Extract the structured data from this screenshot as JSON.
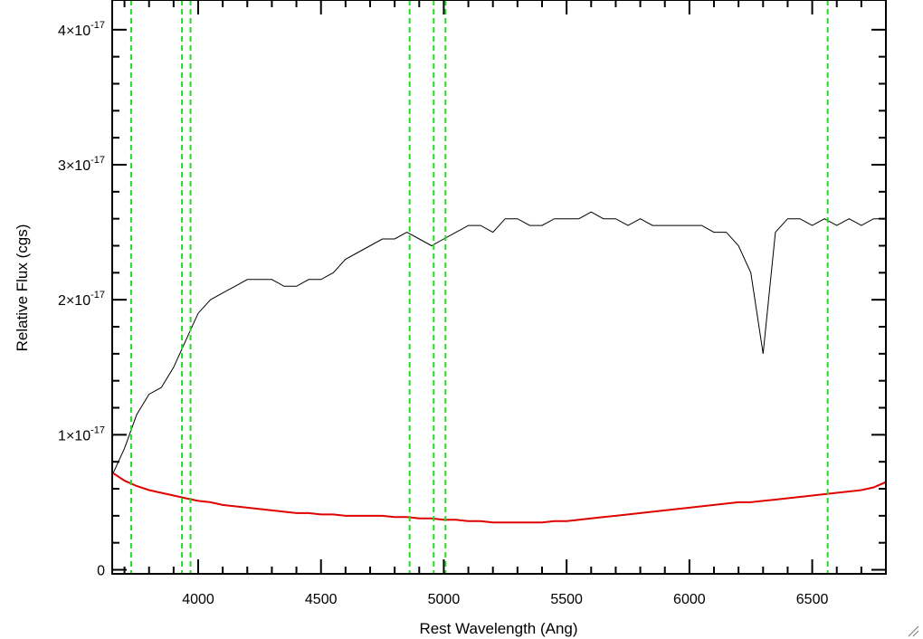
{
  "chart_data": {
    "type": "line",
    "title": "",
    "xlabel": "Rest Wavelength (Ang)",
    "ylabel": "Relative Flux (cgs)",
    "xlim": [
      3650,
      6800
    ],
    "ylim": [
      -0.03,
      4.22
    ],
    "y_scale_note": "x10^-17",
    "x_ticks": [
      {
        "value": 4000,
        "label": "4000"
      },
      {
        "value": 4500,
        "label": "4500"
      },
      {
        "value": 5000,
        "label": "5000"
      },
      {
        "value": 5500,
        "label": "5500"
      },
      {
        "value": 6000,
        "label": "6000"
      },
      {
        "value": 6500,
        "label": "6500"
      }
    ],
    "y_ticks": [
      {
        "value": 0,
        "mantissa": "0",
        "exp": ""
      },
      {
        "value": 1,
        "mantissa": "1×10",
        "exp": "-17"
      },
      {
        "value": 2,
        "mantissa": "2×10",
        "exp": "-17"
      },
      {
        "value": 3,
        "mantissa": "3×10",
        "exp": "-17"
      },
      {
        "value": 4,
        "mantissa": "4×10",
        "exp": "-17"
      }
    ],
    "vertical_lines": [
      3727,
      3934,
      3969,
      4861,
      4959,
      5007,
      6563
    ],
    "series": [
      {
        "color": "#000000",
        "x": [
          3650,
          3700,
          3750,
          3800,
          3850,
          3900,
          3950,
          4000,
          4050,
          4100,
          4150,
          4200,
          4250,
          4300,
          4350,
          4400,
          4450,
          4500,
          4550,
          4600,
          4650,
          4700,
          4750,
          4800,
          4850,
          4900,
          4950,
          5000,
          5050,
          5100,
          5150,
          5200,
          5250,
          5300,
          5350,
          5400,
          5450,
          5500,
          5550,
          5600,
          5650,
          5700,
          5750,
          5800,
          5850,
          5900,
          5950,
          6000,
          6050,
          6100,
          6150,
          6200,
          6250,
          6300,
          6350,
          6400,
          6450,
          6500,
          6550,
          6600,
          6650,
          6700,
          6750,
          6800
        ],
        "y": [
          0.7,
          0.9,
          1.15,
          1.3,
          1.35,
          1.5,
          1.7,
          1.9,
          2.0,
          2.05,
          2.1,
          2.15,
          2.15,
          2.15,
          2.1,
          2.1,
          2.15,
          2.15,
          2.2,
          2.3,
          2.35,
          2.4,
          2.45,
          2.45,
          2.5,
          2.45,
          2.4,
          2.45,
          2.5,
          2.55,
          2.55,
          2.5,
          2.6,
          2.6,
          2.55,
          2.55,
          2.6,
          2.6,
          2.6,
          2.65,
          2.6,
          2.6,
          2.55,
          2.6,
          2.55,
          2.55,
          2.55,
          2.55,
          2.55,
          2.5,
          2.5,
          2.4,
          2.2,
          1.6,
          2.5,
          2.6,
          2.6,
          2.55,
          2.6,
          2.55,
          2.6,
          2.55,
          2.6,
          2.6
        ]
      },
      {
        "color": "#e00000",
        "x": [
          3650,
          3700,
          3750,
          3800,
          3850,
          3900,
          3950,
          4000,
          4050,
          4100,
          4150,
          4200,
          4250,
          4300,
          4350,
          4400,
          4450,
          4500,
          4550,
          4600,
          4650,
          4700,
          4750,
          4800,
          4850,
          4900,
          4950,
          5000,
          5050,
          5100,
          5150,
          5200,
          5250,
          5300,
          5350,
          5400,
          5450,
          5500,
          5550,
          5600,
          5650,
          5700,
          5750,
          5800,
          5850,
          5900,
          5950,
          6000,
          6050,
          6100,
          6150,
          6200,
          6250,
          6300,
          6350,
          6400,
          6450,
          6500,
          6550,
          6600,
          6650,
          6700,
          6750,
          6800
        ],
        "y": [
          0.72,
          0.66,
          0.62,
          0.59,
          0.57,
          0.55,
          0.53,
          0.51,
          0.5,
          0.48,
          0.47,
          0.46,
          0.45,
          0.44,
          0.43,
          0.42,
          0.42,
          0.41,
          0.41,
          0.4,
          0.4,
          0.4,
          0.4,
          0.39,
          0.39,
          0.38,
          0.38,
          0.37,
          0.37,
          0.36,
          0.36,
          0.35,
          0.35,
          0.35,
          0.35,
          0.35,
          0.36,
          0.36,
          0.37,
          0.38,
          0.39,
          0.4,
          0.41,
          0.42,
          0.43,
          0.44,
          0.45,
          0.46,
          0.47,
          0.48,
          0.49,
          0.5,
          0.5,
          0.51,
          0.52,
          0.53,
          0.54,
          0.55,
          0.56,
          0.57,
          0.58,
          0.59,
          0.61,
          0.65
        ]
      }
    ],
    "grid": false,
    "legend": "none"
  }
}
